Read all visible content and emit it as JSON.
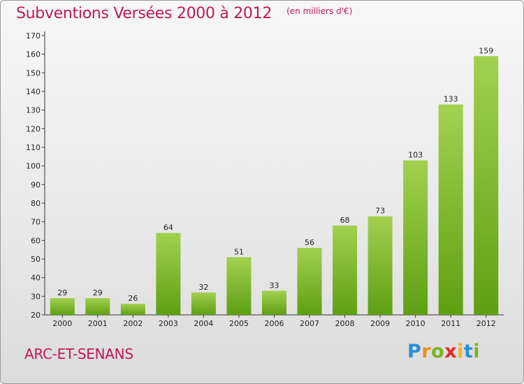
{
  "chart_data": {
    "type": "bar",
    "title": "Subventions Versées 2000 à 2012",
    "subtitle": "(en milliers d'€)",
    "categories": [
      "2000",
      "2001",
      "2002",
      "2003",
      "2004",
      "2005",
      "2006",
      "2007",
      "2008",
      "2009",
      "2010",
      "2011",
      "2012"
    ],
    "values": [
      29,
      29,
      26,
      64,
      32,
      51,
      33,
      56,
      68,
      73,
      103,
      133,
      159
    ],
    "ylim": [
      20,
      170
    ],
    "yticks": [
      20,
      30,
      40,
      50,
      60,
      70,
      80,
      90,
      100,
      110,
      120,
      130,
      140,
      150,
      160,
      170
    ],
    "xlabel": "",
    "ylabel": "",
    "grid": false,
    "bar_color_top": "#a2d150",
    "bar_color_bottom": "#5e9f12"
  },
  "footer": {
    "place": "ARC-ET-SENANS",
    "logo": {
      "letters": [
        {
          "char": "P",
          "color": "#2a8fd6"
        },
        {
          "char": "r",
          "color": "#f08c1a"
        },
        {
          "char": "o",
          "color": "#7ab51d"
        },
        {
          "char": "x",
          "color": "#e8262a"
        },
        {
          "char": "i",
          "color": "#f2b51a"
        },
        {
          "char": "t",
          "color": "#2a8fd6"
        },
        {
          "char": "i",
          "color": "#7ab51d"
        }
      ]
    }
  },
  "colors": {
    "accent": "#c0185a"
  }
}
